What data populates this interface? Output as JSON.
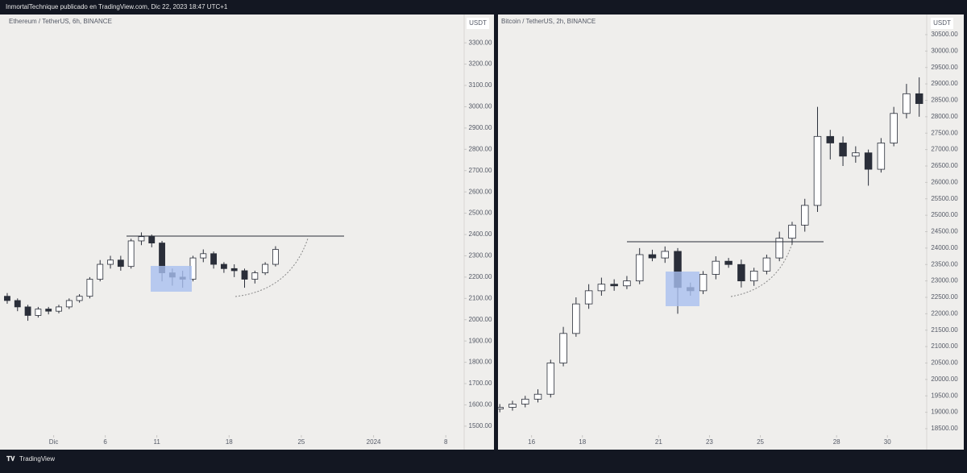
{
  "header": "InmortalTechnique publicado en TradingView.com, Dic 22, 2023 18:47 UTC+1",
  "footer": "TradingView",
  "chart_data": [
    {
      "type": "candlestick",
      "title": "Ethereum / TetherUS, 6h, BINANCE",
      "currency": "USDT",
      "up_color": "#ffffff",
      "down_color": "#2a2e39",
      "x": [
        -3.5,
        -2.5,
        -1.5,
        -0.5,
        0.5,
        1.5,
        2.5,
        3.5,
        4.5,
        5.5,
        6.5,
        7.5,
        8.5,
        9.5,
        10.5,
        11.5,
        12.5,
        13.5,
        14.5,
        15.5,
        16.5,
        17.5,
        18.5,
        19.5,
        20.5,
        21.5,
        22.5
      ],
      "open": [
        2110,
        2090,
        2060,
        2020,
        2050,
        2040,
        2060,
        2090,
        2110,
        2190,
        2260,
        2280,
        2250,
        2370,
        2390,
        2360,
        2220,
        2200,
        2190,
        2290,
        2310,
        2260,
        2240,
        2230,
        2190,
        2220,
        2260
      ],
      "high": [
        2125,
        2100,
        2070,
        2060,
        2060,
        2070,
        2100,
        2120,
        2200,
        2280,
        2300,
        2300,
        2380,
        2410,
        2400,
        2370,
        2240,
        2230,
        2300,
        2330,
        2320,
        2270,
        2260,
        2240,
        2230,
        2270,
        2345
      ],
      "low": [
        2075,
        2040,
        1995,
        2010,
        2025,
        2030,
        2050,
        2080,
        2100,
        2180,
        2240,
        2230,
        2240,
        2350,
        2340,
        2180,
        2160,
        2150,
        2180,
        2270,
        2240,
        2220,
        2200,
        2150,
        2170,
        2210,
        2250
      ],
      "close": [
        2090,
        2060,
        2020,
        2050,
        2040,
        2060,
        2090,
        2110,
        2190,
        2260,
        2280,
        2250,
        2370,
        2390,
        2360,
        2220,
        2200,
        2190,
        2290,
        2310,
        2260,
        2240,
        2230,
        2190,
        2220,
        2260,
        2330
      ],
      "xlim": [
        -4.2,
        40.7
      ],
      "ylim": [
        1458,
        3433
      ],
      "xticks": [
        {
          "value": 1,
          "label": "Dic"
        },
        6,
        11,
        18,
        25,
        {
          "value": 32,
          "label": "2024"
        },
        {
          "value": 39,
          "label": "8"
        }
      ],
      "yticks": [
        {
          "value": 1500,
          "label": "1500.00"
        },
        {
          "value": 1600,
          "label": "1600.00"
        },
        {
          "value": 1700,
          "label": "1700.00"
        },
        {
          "value": 1800,
          "label": "1800.00"
        },
        {
          "value": 1900,
          "label": "1900.00"
        },
        {
          "value": 2000,
          "label": "2000.00"
        },
        {
          "value": 2100,
          "label": "2100.00"
        },
        {
          "value": 2200,
          "label": "2200.00"
        },
        {
          "value": 2300,
          "label": "2300.00"
        },
        {
          "value": 2400,
          "label": "2400.00"
        },
        {
          "value": 2500,
          "label": "2500.00"
        },
        {
          "value": 2600,
          "label": "2600.00"
        },
        {
          "value": 2700,
          "label": "2700.00"
        },
        {
          "value": 2800,
          "label": "2800.00"
        },
        {
          "value": 2900,
          "label": "2900.00"
        },
        {
          "value": 3000,
          "label": "3000.00"
        },
        {
          "value": 3100,
          "label": "3100.00"
        },
        {
          "value": 3200,
          "label": "3200.00"
        },
        {
          "value": 3300,
          "label": "3300.00"
        }
      ]
    },
    {
      "type": "candlestick",
      "title": "Bitcoin / TetherUS, 2h, BINANCE",
      "currency": "USDT",
      "up_color": "#ffffff",
      "down_color": "#2a2e39",
      "x": [
        14.75,
        15.25,
        15.75,
        16.25,
        16.75,
        17.25,
        17.75,
        18.25,
        18.75,
        19.25,
        19.75,
        20.25,
        20.75,
        21.25,
        21.75,
        22.25,
        22.75,
        23.25,
        23.75,
        24.25,
        24.75,
        25.25,
        25.75,
        26.25,
        26.75,
        27.25,
        27.75,
        28.25,
        28.75,
        29.25,
        29.75,
        30.25,
        30.75,
        31.25
      ],
      "open": [
        19100,
        19150,
        19250,
        19400,
        19550,
        20500,
        21400,
        22300,
        22700,
        22900,
        22850,
        23000,
        23800,
        23700,
        23900,
        22800,
        22700,
        23200,
        23600,
        23500,
        23000,
        23300,
        23700,
        24300,
        24700,
        25300,
        27400,
        27200,
        26800,
        26900,
        26400,
        27200,
        28100,
        28700
      ],
      "high": [
        19250,
        19350,
        19500,
        19700,
        20600,
        21600,
        22500,
        22900,
        23100,
        23050,
        23150,
        24000,
        23950,
        24050,
        24000,
        22950,
        23300,
        23750,
        23700,
        23650,
        23400,
        23800,
        24500,
        24800,
        25500,
        28300,
        27600,
        27400,
        27100,
        27000,
        27350,
        28300,
        29000,
        29200
      ],
      "low": [
        19000,
        19050,
        19150,
        19300,
        19450,
        20400,
        21300,
        22150,
        22550,
        22700,
        22750,
        22900,
        23600,
        23550,
        22000,
        22550,
        22600,
        23050,
        23400,
        22800,
        22850,
        23200,
        23600,
        24100,
        24500,
        25100,
        26700,
        26500,
        26600,
        25900,
        26300,
        27100,
        27950,
        28000
      ],
      "close": [
        19150,
        19250,
        19400,
        19550,
        20500,
        21400,
        22300,
        22700,
        22900,
        22850,
        23000,
        23800,
        23700,
        23900,
        22800,
        22700,
        23200,
        23600,
        23500,
        23000,
        23300,
        23700,
        24300,
        24700,
        25300,
        27400,
        27200,
        26800,
        26900,
        26400,
        27200,
        28100,
        28700,
        28400
      ],
      "xlim": [
        14.68,
        31.45
      ],
      "ylim": [
        18304,
        31113
      ],
      "xticks": [
        16,
        18,
        21,
        23,
        25,
        28,
        30
      ],
      "yticks": [
        {
          "value": 18500,
          "label": "18500.00"
        },
        {
          "value": 19000,
          "label": "19000.00"
        },
        {
          "value": 19500,
          "label": "19500.00"
        },
        {
          "value": 20000,
          "label": "20000.00"
        },
        {
          "value": 20500,
          "label": "20500.00"
        },
        {
          "value": 21000,
          "label": "21000.00"
        },
        {
          "value": 21500,
          "label": "21500.00"
        },
        {
          "value": 22000,
          "label": "22000.00"
        },
        {
          "value": 22500,
          "label": "22500.00"
        },
        {
          "value": 23000,
          "label": "23000.00"
        },
        {
          "value": 23500,
          "label": "23500.00"
        },
        {
          "value": 24000,
          "label": "24000.00"
        },
        {
          "value": 24500,
          "label": "24500.00"
        },
        {
          "value": 25000,
          "label": "25000.00"
        },
        {
          "value": 25500,
          "label": "25500.00"
        },
        {
          "value": 26000,
          "label": "26000.00"
        },
        {
          "value": 26500,
          "label": "26500.00"
        },
        {
          "value": 27000,
          "label": "27000.00"
        },
        {
          "value": 27500,
          "label": "27500.00"
        },
        {
          "value": 28000,
          "label": "28000.00"
        },
        {
          "value": 28500,
          "label": "28500.00"
        },
        {
          "value": 29000,
          "label": "29000.00"
        },
        {
          "value": 29500,
          "label": "29500.00"
        },
        {
          "value": 30000,
          "label": "30000.00"
        },
        {
          "value": 30500,
          "label": "30500.00"
        }
      ]
    }
  ]
}
